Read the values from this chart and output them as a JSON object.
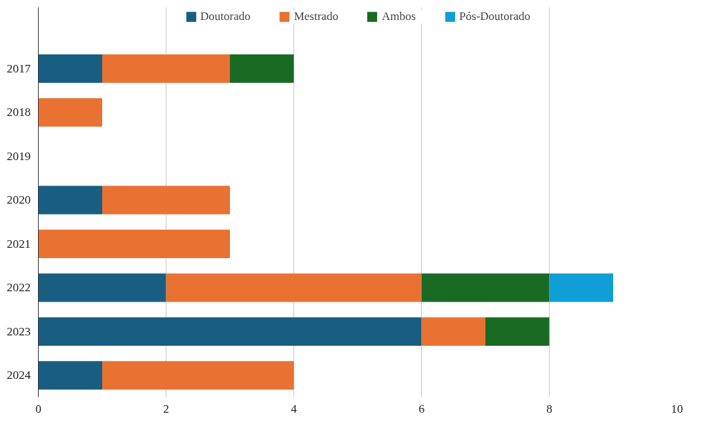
{
  "chart_data": {
    "type": "bar",
    "orientation": "horizontal",
    "stacked": true,
    "categories": [
      "2017",
      "2018",
      "2019",
      "2020",
      "2021",
      "2022",
      "2023",
      "2024"
    ],
    "series": [
      {
        "name": "Doutorado",
        "color": "#175e82",
        "values": [
          1,
          null,
          null,
          1,
          null,
          2,
          6,
          1
        ]
      },
      {
        "name": "Mestrado",
        "color": "#e97132",
        "values": [
          2,
          1,
          null,
          2,
          3,
          4,
          1,
          3
        ]
      },
      {
        "name": "Ambos",
        "color": "#196b24",
        "values": [
          1,
          null,
          null,
          null,
          null,
          2,
          1,
          null
        ]
      },
      {
        "name": "Pós-Doutorado",
        "color": "#0f9ed5",
        "values": [
          null,
          null,
          null,
          null,
          null,
          1,
          null,
          null
        ]
      }
    ],
    "xlim": [
      0,
      10
    ],
    "xticks": [
      0,
      2,
      4,
      6,
      8,
      10
    ],
    "grid": "x",
    "legend": "top"
  }
}
